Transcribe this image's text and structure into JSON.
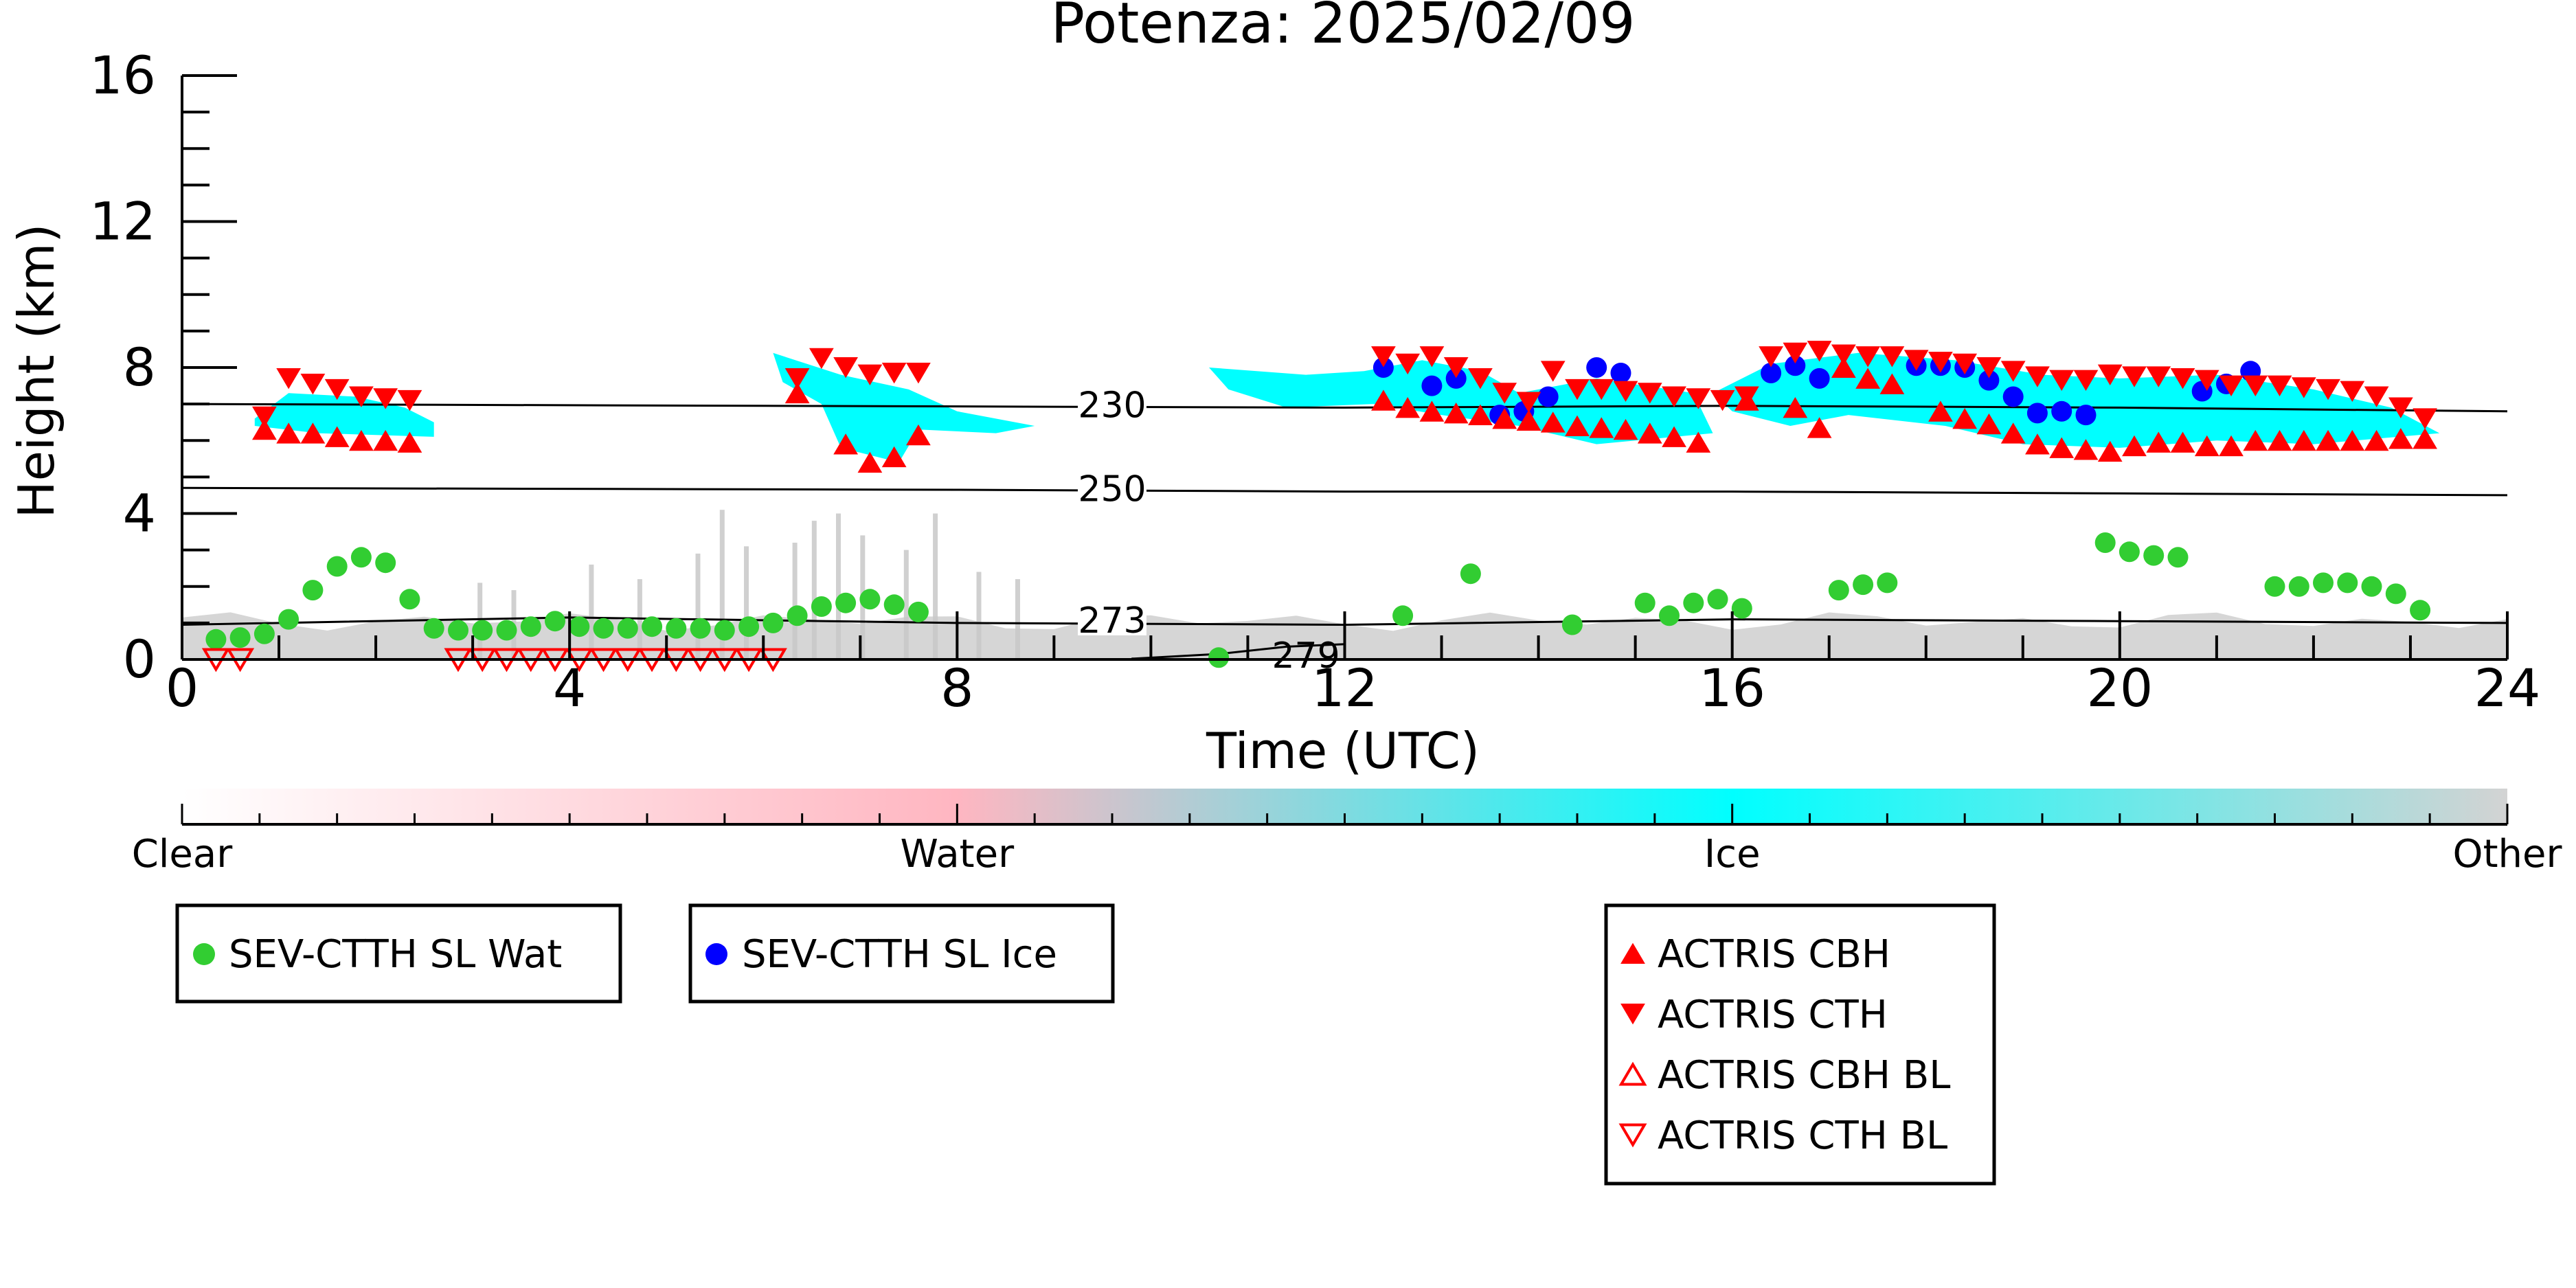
{
  "chart_data": {
    "type": "scatter",
    "title": "Potenza: 2025/02/09",
    "xlabel": "Time (UTC)",
    "ylabel": "Height (km)",
    "xlim": [
      0,
      24
    ],
    "ylim": [
      0,
      16
    ],
    "x_ticks": [
      "0",
      "4",
      "8",
      "12",
      "16",
      "20",
      "24"
    ],
    "y_ticks": [
      "0",
      "4",
      "8",
      "12",
      "16"
    ],
    "background": "cloud classification curtain (Clear / Water / Ice / Other) with temperature contours",
    "colorbar": {
      "labels": [
        "Clear",
        "Water",
        "Ice",
        "Other"
      ],
      "colors": [
        "#ffffff",
        "#ffb6c1",
        "#00ffff",
        "#d3d3d3"
      ]
    },
    "contours": [
      {
        "label": "230",
        "points": [
          [
            0,
            7.0
          ],
          [
            6,
            6.95
          ],
          [
            12,
            6.9
          ],
          [
            16,
            6.95
          ],
          [
            20,
            6.9
          ],
          [
            24,
            6.8
          ]
        ]
      },
      {
        "label": "250",
        "points": [
          [
            0,
            4.7
          ],
          [
            8,
            4.65
          ],
          [
            12,
            4.6
          ],
          [
            16,
            4.6
          ],
          [
            20,
            4.55
          ],
          [
            24,
            4.5
          ]
        ]
      },
      {
        "label": "273",
        "points": [
          [
            0,
            0.95
          ],
          [
            4,
            1.15
          ],
          [
            8,
            1.0
          ],
          [
            12,
            0.95
          ],
          [
            16,
            1.1
          ],
          [
            20,
            1.05
          ],
          [
            24,
            1.0
          ]
        ]
      },
      {
        "label": "279",
        "points": [
          [
            9.8,
            0.02
          ],
          [
            10.7,
            0.15
          ],
          [
            11.4,
            0.35
          ],
          [
            12,
            0.42
          ]
        ]
      }
    ],
    "legend": {
      "sev_wat": "SEV-CTTH SL Wat",
      "sev_ice": "SEV-CTTH SL Ice",
      "actris_cbh": "ACTRIS CBH",
      "actris_cth": "ACTRIS CTH",
      "actris_cbh_bl": "ACTRIS CBH BL",
      "actris_cth_bl": "ACTRIS CTH BL"
    },
    "colors": {
      "water": "#32cd32",
      "ice": "#0000ff",
      "actris": "#ff0000",
      "ice_cloud": "#00ffff",
      "other": "#c8c8c8"
    },
    "ice_regions": [
      [
        [
          0.75,
          6.6
        ],
        [
          1.1,
          7.3
        ],
        [
          1.8,
          7.2
        ],
        [
          2.3,
          6.9
        ],
        [
          2.6,
          6.5
        ],
        [
          2.6,
          6.1
        ],
        [
          1.4,
          6.2
        ],
        [
          0.75,
          6.4
        ]
      ],
      [
        [
          6.1,
          8.4
        ],
        [
          6.8,
          7.8
        ],
        [
          7.5,
          7.4
        ],
        [
          8.0,
          6.8
        ],
        [
          8.8,
          6.4
        ],
        [
          8.4,
          6.2
        ],
        [
          7.6,
          6.3
        ],
        [
          7.4,
          5.4
        ],
        [
          6.8,
          5.8
        ],
        [
          6.6,
          7.0
        ],
        [
          6.2,
          7.6
        ]
      ],
      [
        [
          10.6,
          8.0
        ],
        [
          11.6,
          7.8
        ],
        [
          12.2,
          7.9
        ],
        [
          12.8,
          8.2
        ],
        [
          13.4,
          7.9
        ],
        [
          13.8,
          7.3
        ],
        [
          14.6,
          7.7
        ],
        [
          15.6,
          7.3
        ],
        [
          15.8,
          6.2
        ],
        [
          14.6,
          5.9
        ],
        [
          13.8,
          6.4
        ],
        [
          13.0,
          6.7
        ],
        [
          12.3,
          7.0
        ],
        [
          11.4,
          6.9
        ],
        [
          10.8,
          7.4
        ]
      ],
      [
        [
          15.8,
          7.3
        ],
        [
          16.4,
          8.1
        ],
        [
          17.3,
          8.4
        ],
        [
          18.3,
          8.2
        ],
        [
          19.2,
          7.8
        ],
        [
          20.0,
          7.7
        ],
        [
          21.0,
          7.8
        ],
        [
          22.0,
          7.4
        ],
        [
          22.8,
          6.9
        ],
        [
          23.3,
          6.2
        ],
        [
          22.0,
          5.9
        ],
        [
          21.0,
          6.0
        ],
        [
          20.0,
          5.8
        ],
        [
          19.0,
          5.9
        ],
        [
          18.2,
          6.4
        ],
        [
          17.2,
          6.7
        ],
        [
          16.6,
          6.4
        ],
        [
          16.0,
          6.8
        ]
      ]
    ],
    "series": [
      {
        "key": "sev_wat",
        "marker": "circle",
        "points": [
          [
            0.35,
            0.55
          ],
          [
            0.6,
            0.6
          ],
          [
            0.85,
            0.7
          ],
          [
            1.1,
            1.1
          ],
          [
            1.35,
            1.9
          ],
          [
            1.6,
            2.55
          ],
          [
            1.85,
            2.8
          ],
          [
            2.1,
            2.65
          ],
          [
            2.35,
            1.65
          ],
          [
            2.6,
            0.85
          ],
          [
            2.85,
            0.8
          ],
          [
            3.1,
            0.8
          ],
          [
            3.35,
            0.8
          ],
          [
            3.6,
            0.9
          ],
          [
            3.85,
            1.05
          ],
          [
            4.1,
            0.9
          ],
          [
            4.35,
            0.85
          ],
          [
            4.6,
            0.85
          ],
          [
            4.85,
            0.9
          ],
          [
            5.1,
            0.85
          ],
          [
            5.35,
            0.85
          ],
          [
            5.6,
            0.8
          ],
          [
            5.85,
            0.9
          ],
          [
            6.1,
            1.0
          ],
          [
            6.35,
            1.2
          ],
          [
            6.6,
            1.45
          ],
          [
            6.85,
            1.55
          ],
          [
            7.1,
            1.65
          ],
          [
            7.35,
            1.5
          ],
          [
            7.6,
            1.3
          ],
          [
            10.7,
            0.05
          ],
          [
            12.6,
            1.2
          ],
          [
            13.3,
            2.35
          ],
          [
            14.35,
            0.95
          ],
          [
            15.1,
            1.55
          ],
          [
            15.35,
            1.2
          ],
          [
            15.6,
            1.55
          ],
          [
            15.85,
            1.65
          ],
          [
            16.1,
            1.4
          ],
          [
            17.1,
            1.9
          ],
          [
            17.35,
            2.05
          ],
          [
            17.6,
            2.1
          ],
          [
            19.85,
            3.2
          ],
          [
            20.1,
            2.95
          ],
          [
            20.35,
            2.85
          ],
          [
            20.6,
            2.8
          ],
          [
            21.6,
            2.0
          ],
          [
            21.85,
            2.0
          ],
          [
            22.1,
            2.1
          ],
          [
            22.35,
            2.1
          ],
          [
            22.6,
            2.0
          ],
          [
            22.85,
            1.8
          ],
          [
            23.1,
            1.35
          ]
        ]
      },
      {
        "key": "sev_ice",
        "marker": "circle",
        "points": [
          [
            12.4,
            8.0
          ],
          [
            12.9,
            7.5
          ],
          [
            13.15,
            7.7
          ],
          [
            13.6,
            6.7
          ],
          [
            13.85,
            6.8
          ],
          [
            14.1,
            7.2
          ],
          [
            14.6,
            8.0
          ],
          [
            14.85,
            7.85
          ],
          [
            16.4,
            7.85
          ],
          [
            16.65,
            8.05
          ],
          [
            16.9,
            7.7
          ],
          [
            17.9,
            8.05
          ],
          [
            18.15,
            8.05
          ],
          [
            18.4,
            8.0
          ],
          [
            18.65,
            7.65
          ],
          [
            18.9,
            7.2
          ],
          [
            19.15,
            6.75
          ],
          [
            19.4,
            6.8
          ],
          [
            19.65,
            6.7
          ],
          [
            20.85,
            7.35
          ],
          [
            21.1,
            7.55
          ],
          [
            21.35,
            7.9
          ]
        ]
      },
      {
        "key": "actris_cbh",
        "marker": "triangle-up",
        "points": [
          [
            0.85,
            6.3
          ],
          [
            1.1,
            6.2
          ],
          [
            1.35,
            6.2
          ],
          [
            1.6,
            6.1
          ],
          [
            1.85,
            6.0
          ],
          [
            2.1,
            6.0
          ],
          [
            2.35,
            5.95
          ],
          [
            6.35,
            7.3
          ],
          [
            6.85,
            5.9
          ],
          [
            7.1,
            5.4
          ],
          [
            7.35,
            5.55
          ],
          [
            7.6,
            6.15
          ],
          [
            12.4,
            7.1
          ],
          [
            12.65,
            6.9
          ],
          [
            12.9,
            6.8
          ],
          [
            13.15,
            6.75
          ],
          [
            13.4,
            6.7
          ],
          [
            13.65,
            6.6
          ],
          [
            13.9,
            6.55
          ],
          [
            14.15,
            6.5
          ],
          [
            14.4,
            6.4
          ],
          [
            14.65,
            6.35
          ],
          [
            14.9,
            6.3
          ],
          [
            15.15,
            6.2
          ],
          [
            15.4,
            6.1
          ],
          [
            15.65,
            5.95
          ],
          [
            16.15,
            7.1
          ],
          [
            16.65,
            6.9
          ],
          [
            16.9,
            6.35
          ],
          [
            17.15,
            8.0
          ],
          [
            17.4,
            7.7
          ],
          [
            17.65,
            7.55
          ],
          [
            18.15,
            6.8
          ],
          [
            18.4,
            6.6
          ],
          [
            18.65,
            6.45
          ],
          [
            18.9,
            6.2
          ],
          [
            19.15,
            5.9
          ],
          [
            19.4,
            5.8
          ],
          [
            19.65,
            5.75
          ],
          [
            19.9,
            5.7
          ],
          [
            20.15,
            5.85
          ],
          [
            20.4,
            5.95
          ],
          [
            20.65,
            5.95
          ],
          [
            20.9,
            5.85
          ],
          [
            21.15,
            5.85
          ],
          [
            21.4,
            6.0
          ],
          [
            21.65,
            6.0
          ],
          [
            21.9,
            6.0
          ],
          [
            22.15,
            6.0
          ],
          [
            22.4,
            6.0
          ],
          [
            22.65,
            6.0
          ],
          [
            22.9,
            6.05
          ],
          [
            23.15,
            6.05
          ]
        ]
      },
      {
        "key": "actris_cth",
        "marker": "triangle-down",
        "points": [
          [
            0.85,
            6.65
          ],
          [
            1.1,
            7.7
          ],
          [
            1.35,
            7.55
          ],
          [
            1.6,
            7.4
          ],
          [
            1.85,
            7.2
          ],
          [
            2.1,
            7.15
          ],
          [
            2.35,
            7.1
          ],
          [
            6.35,
            7.7
          ],
          [
            6.6,
            8.25
          ],
          [
            6.85,
            8.0
          ],
          [
            7.1,
            7.8
          ],
          [
            7.35,
            7.85
          ],
          [
            7.6,
            7.85
          ],
          [
            12.4,
            8.3
          ],
          [
            12.65,
            8.1
          ],
          [
            12.9,
            8.3
          ],
          [
            13.15,
            8.0
          ],
          [
            13.4,
            7.7
          ],
          [
            13.65,
            7.3
          ],
          [
            13.9,
            7.05
          ],
          [
            14.15,
            7.9
          ],
          [
            14.4,
            7.4
          ],
          [
            14.65,
            7.4
          ],
          [
            14.9,
            7.35
          ],
          [
            15.15,
            7.3
          ],
          [
            15.4,
            7.2
          ],
          [
            15.65,
            7.15
          ],
          [
            15.9,
            7.1
          ],
          [
            16.15,
            7.2
          ],
          [
            16.4,
            8.3
          ],
          [
            16.65,
            8.4
          ],
          [
            16.9,
            8.45
          ],
          [
            17.15,
            8.35
          ],
          [
            17.4,
            8.3
          ],
          [
            17.65,
            8.3
          ],
          [
            17.9,
            8.2
          ],
          [
            18.15,
            8.15
          ],
          [
            18.4,
            8.1
          ],
          [
            18.65,
            8.0
          ],
          [
            18.9,
            7.9
          ],
          [
            19.15,
            7.75
          ],
          [
            19.4,
            7.65
          ],
          [
            19.65,
            7.65
          ],
          [
            19.9,
            7.8
          ],
          [
            20.15,
            7.75
          ],
          [
            20.4,
            7.75
          ],
          [
            20.65,
            7.7
          ],
          [
            20.9,
            7.65
          ],
          [
            21.15,
            7.5
          ],
          [
            21.4,
            7.5
          ],
          [
            21.65,
            7.5
          ],
          [
            21.9,
            7.45
          ],
          [
            22.15,
            7.4
          ],
          [
            22.4,
            7.35
          ],
          [
            22.65,
            7.2
          ],
          [
            22.9,
            6.9
          ],
          [
            23.15,
            6.6
          ]
        ]
      },
      {
        "key": "actris_cbh_bl",
        "marker": "triangle-up-open",
        "points": []
      },
      {
        "key": "actris_cth_bl",
        "marker": "triangle-down-open",
        "points": [
          [
            0.35,
            0.0
          ],
          [
            0.6,
            0.0
          ],
          [
            2.85,
            0.0
          ],
          [
            3.1,
            0.0
          ],
          [
            3.35,
            0.0
          ],
          [
            3.6,
            0.0
          ],
          [
            3.85,
            0.0
          ],
          [
            4.1,
            0.0
          ],
          [
            4.35,
            0.0
          ],
          [
            4.6,
            0.0
          ],
          [
            4.85,
            0.0
          ],
          [
            5.1,
            0.0
          ],
          [
            5.35,
            0.0
          ],
          [
            5.6,
            0.0
          ],
          [
            5.85,
            0.0
          ],
          [
            6.1,
            0.0
          ]
        ]
      }
    ]
  }
}
